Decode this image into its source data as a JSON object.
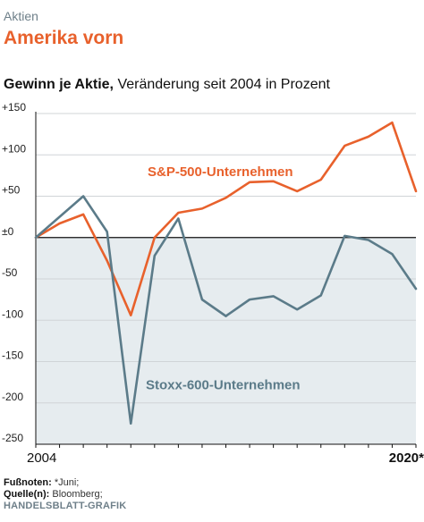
{
  "kicker": "Aktien",
  "headline": "Amerika vorn",
  "subtitle_bold": "Gewinn je Aktie,",
  "subtitle_rest": " Veränderung seit 2004 in Prozent",
  "footer": {
    "footnotes_label": "Fußnoten:",
    "footnotes_text": " *Juni;",
    "source_label": "Quelle(n):",
    "source_text": " Bloomberg;",
    "brand": "HANDELSBLATT-GRAFIK"
  },
  "chart_data": {
    "type": "line",
    "x": [
      2004,
      2005,
      2006,
      2007,
      2008,
      2009,
      2010,
      2011,
      2012,
      2013,
      2014,
      2015,
      2016,
      2017,
      2018,
      2019,
      2020
    ],
    "x_tick_labels": [
      {
        "x": 2004,
        "label": "2004",
        "bold": false
      },
      {
        "x": 2020,
        "label": "2020*",
        "bold": true
      }
    ],
    "ylim": [
      -250,
      150
    ],
    "y_ticks": [
      {
        "value": 150,
        "label": "+150"
      },
      {
        "value": 100,
        "label": "+100"
      },
      {
        "value": 50,
        "label": "+50"
      },
      {
        "value": 0,
        "label": "±0"
      },
      {
        "value": -50,
        "label": "-50"
      },
      {
        "value": -100,
        "label": "-100"
      },
      {
        "value": -150,
        "label": "-150"
      },
      {
        "value": -200,
        "label": "-200"
      },
      {
        "value": -250,
        "label": "-250"
      }
    ],
    "grid": "horizontal",
    "series": [
      {
        "name": "S&P-500-Unternehmen",
        "color": "#e8612c",
        "values": [
          0,
          17,
          28,
          -28,
          -94,
          0,
          30,
          35,
          48,
          67,
          68,
          56,
          70,
          111,
          122,
          139,
          56
        ]
      },
      {
        "name": "Stoxx-600-Unternehmen",
        "color": "#5b7b89",
        "values": [
          0,
          25,
          50,
          7,
          -225,
          -22,
          23,
          -75,
          -95,
          -75,
          -71,
          -87,
          -70,
          2,
          -3,
          -20,
          -62
        ]
      }
    ],
    "negative_area_fill": "#e6ecef",
    "axis_color": "#111111",
    "grid_color": "#d0d4d7"
  }
}
